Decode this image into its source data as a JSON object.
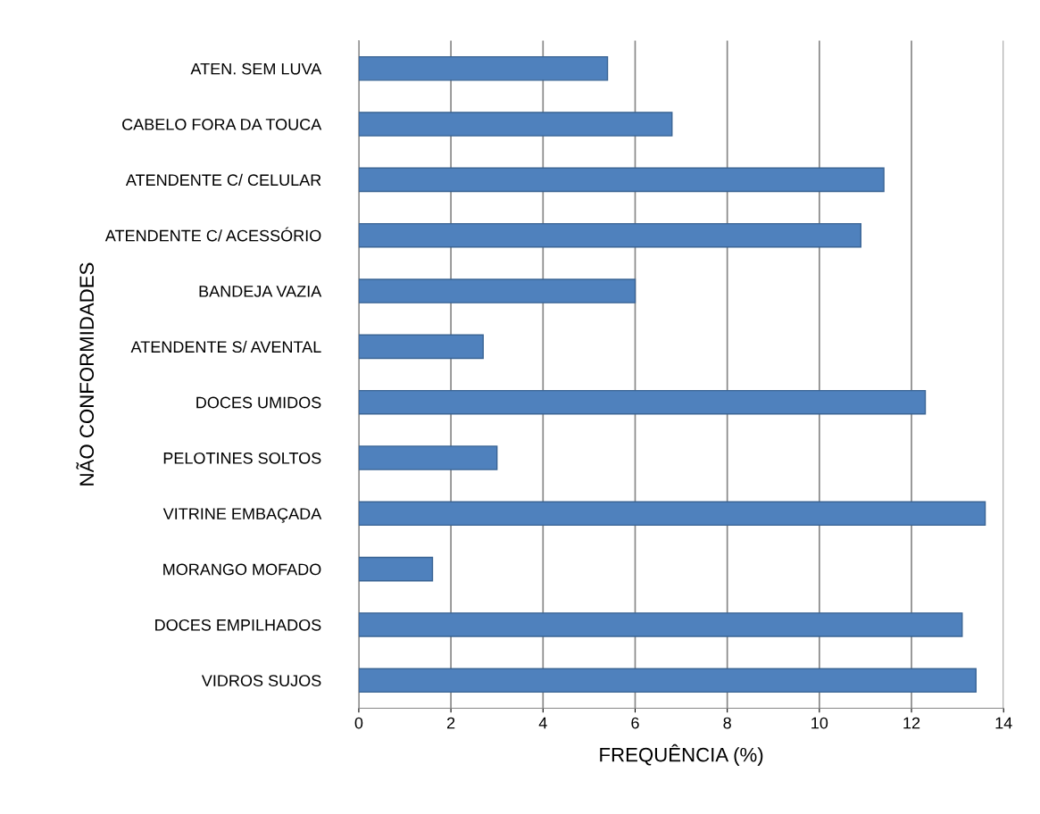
{
  "chart_data": {
    "type": "bar",
    "orientation": "horizontal",
    "xlabel": "FREQUÊNCIA (%)",
    "ylabel": "NÃO CONFORMIDADES",
    "categories": [
      "ATEN. SEM LUVA",
      "CABELO FORA DA TOUCA",
      "ATENDENTE C/ CELULAR",
      "ATENDENTE C/ ACESSÓRIO",
      "BANDEJA VAZIA",
      "ATENDENTE S/ AVENTAL",
      "DOCES UMIDOS",
      "PELOTINES SOLTOS",
      "VITRINE EMBAÇADA",
      "MORANGO MOFADO",
      "DOCES EMPILHADOS",
      "VIDROS SUJOS"
    ],
    "values": [
      5.4,
      6.8,
      11.4,
      10.9,
      6.0,
      2.7,
      12.3,
      3.0,
      13.6,
      1.6,
      13.1,
      13.4
    ],
    "color": "#4f81bd",
    "xlim": [
      0,
      14
    ],
    "xticks": [
      0,
      2,
      4,
      6,
      8,
      10,
      12,
      14
    ],
    "grid": "x"
  }
}
